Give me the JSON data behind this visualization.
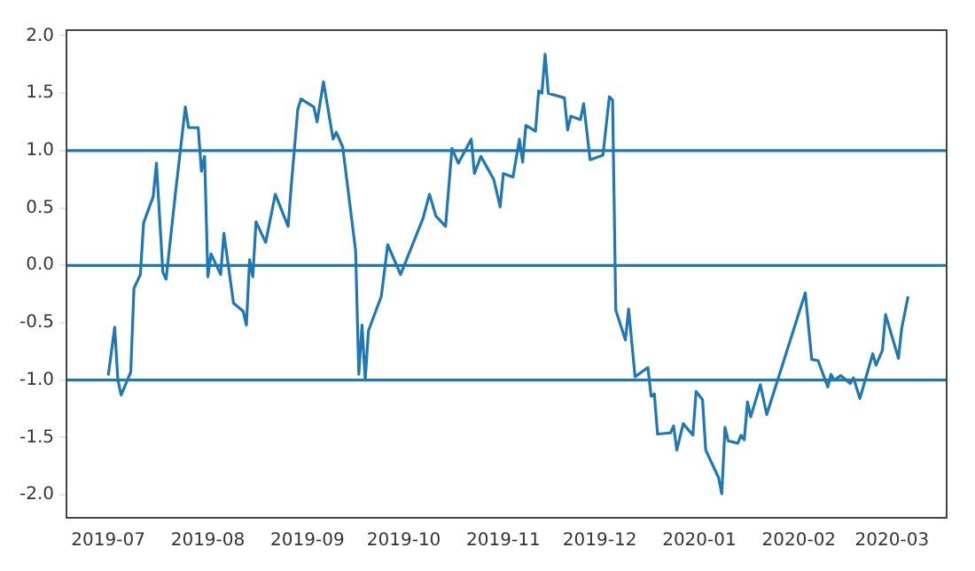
{
  "chart_data": {
    "type": "line",
    "x": [
      "2019-07-01",
      "2019-07-03",
      "2019-07-04",
      "2019-07-05",
      "2019-07-08",
      "2019-07-09",
      "2019-07-11",
      "2019-07-12",
      "2019-07-15",
      "2019-07-16",
      "2019-07-18",
      "2019-07-19",
      "2019-07-22",
      "2019-07-25",
      "2019-07-26",
      "2019-07-29",
      "2019-07-30",
      "2019-07-31",
      "2019-08-01",
      "2019-08-02",
      "2019-08-05",
      "2019-08-06",
      "2019-08-09",
      "2019-08-12",
      "2019-08-13",
      "2019-08-14",
      "2019-08-15",
      "2019-08-16",
      "2019-08-19",
      "2019-08-22",
      "2019-08-26",
      "2019-08-27",
      "2019-08-29",
      "2019-08-30",
      "2019-09-03",
      "2019-09-04",
      "2019-09-06",
      "2019-09-09",
      "2019-09-10",
      "2019-09-12",
      "2019-09-16",
      "2019-09-17",
      "2019-09-18",
      "2019-09-19",
      "2019-09-20",
      "2019-09-24",
      "2019-09-26",
      "2019-09-30",
      "2019-10-07",
      "2019-10-09",
      "2019-10-11",
      "2019-10-14",
      "2019-10-16",
      "2019-10-18",
      "2019-10-22",
      "2019-10-23",
      "2019-10-25",
      "2019-10-29",
      "2019-10-31",
      "2019-11-01",
      "2019-11-04",
      "2019-11-06",
      "2019-11-07",
      "2019-11-08",
      "2019-11-11",
      "2019-11-12",
      "2019-11-13",
      "2019-11-14",
      "2019-11-15",
      "2019-11-20",
      "2019-11-21",
      "2019-11-22",
      "2019-11-25",
      "2019-11-26",
      "2019-11-28",
      "2019-12-02",
      "2019-12-04",
      "2019-12-05",
      "2019-12-06",
      "2019-12-09",
      "2019-12-10",
      "2019-12-12",
      "2019-12-16",
      "2019-12-17",
      "2019-12-18",
      "2019-12-19",
      "2019-12-23",
      "2019-12-24",
      "2019-12-25",
      "2019-12-27",
      "2019-12-30",
      "2019-12-31",
      "2020-01-02",
      "2020-01-03",
      "2020-01-07",
      "2020-01-08",
      "2020-01-09",
      "2020-01-10",
      "2020-01-13",
      "2020-01-14",
      "2020-01-15",
      "2020-01-16",
      "2020-01-17",
      "2020-01-20",
      "2020-01-22",
      "2020-02-03",
      "2020-02-05",
      "2020-02-07",
      "2020-02-10",
      "2020-02-11",
      "2020-02-12",
      "2020-02-14",
      "2020-02-17",
      "2020-02-18",
      "2020-02-20",
      "2020-02-24",
      "2020-02-25",
      "2020-02-27",
      "2020-02-28",
      "2020-03-03",
      "2020-03-04",
      "2020-03-06"
    ],
    "series": [
      {
        "color": "#1f77b4",
        "values": [
          -0.96,
          -0.54,
          -1.0,
          -1.13,
          -0.93,
          -0.2,
          -0.08,
          0.37,
          0.6,
          0.89,
          -0.06,
          -0.12,
          0.65,
          1.38,
          1.2,
          1.2,
          0.82,
          0.95,
          -0.1,
          0.1,
          -0.08,
          0.28,
          -0.33,
          -0.4,
          -0.52,
          0.05,
          -0.1,
          0.38,
          0.2,
          0.62,
          0.34,
          0.7,
          1.36,
          1.45,
          1.38,
          1.25,
          1.6,
          1.1,
          1.16,
          1.03,
          0.13,
          -0.95,
          -0.52,
          -1.0,
          -0.57,
          -0.27,
          0.18,
          -0.08,
          0.41,
          0.62,
          0.43,
          0.34,
          1.02,
          0.89,
          1.1,
          0.8,
          0.95,
          0.75,
          0.51,
          0.8,
          0.77,
          1.1,
          0.9,
          1.22,
          1.17,
          1.52,
          1.5,
          1.84,
          1.5,
          1.46,
          1.18,
          1.3,
          1.27,
          1.41,
          0.92,
          0.96,
          1.47,
          1.44,
          -0.39,
          -0.65,
          -0.38,
          -0.97,
          -0.89,
          -1.14,
          -1.12,
          -1.47,
          -1.46,
          -1.4,
          -1.61,
          -1.38,
          -1.48,
          -1.1,
          -1.17,
          -1.61,
          -1.85,
          -1.99,
          -1.41,
          -1.53,
          -1.55,
          -1.48,
          -1.52,
          -1.19,
          -1.32,
          -1.04,
          -1.3,
          -0.24,
          -0.82,
          -0.83,
          -1.06,
          -0.95,
          -1.0,
          -0.96,
          -1.03,
          -0.98,
          -1.16,
          -0.77,
          -0.87,
          -0.74,
          -0.43,
          -0.81,
          -0.55,
          -0.27
        ]
      }
    ],
    "xlim": [
      "2019-06-18",
      "2020-03-18"
    ],
    "xticks": [
      "2019-07",
      "2019-08",
      "2019-09",
      "2019-10",
      "2019-11",
      "2019-12",
      "2020-01",
      "2020-02",
      "2020-03"
    ],
    "ylim": [
      -2.2,
      2.05
    ],
    "yticks": [
      {
        "value": -2,
        "label": "-2.0"
      },
      {
        "value": -1.5,
        "label": "-1.5"
      },
      {
        "value": -1,
        "label": "-1.0"
      },
      {
        "value": -0.5,
        "label": "-0.5"
      },
      {
        "value": 0,
        "label": "0.0"
      },
      {
        "value": 0.5,
        "label": "0.5"
      },
      {
        "value": 1,
        "label": "1.0"
      },
      {
        "value": 1.5,
        "label": "1.5"
      },
      {
        "value": 2,
        "label": "2.0"
      }
    ],
    "ref_lines": [
      {
        "axis": "y",
        "value": 1,
        "color": "#1f77b4"
      },
      {
        "axis": "y",
        "value": 0,
        "color": "#1f77b4"
      },
      {
        "axis": "y",
        "value": -1,
        "color": "#1f77b4"
      }
    ],
    "grid": false,
    "legend": false,
    "marker": "none",
    "line_style": "solid"
  }
}
